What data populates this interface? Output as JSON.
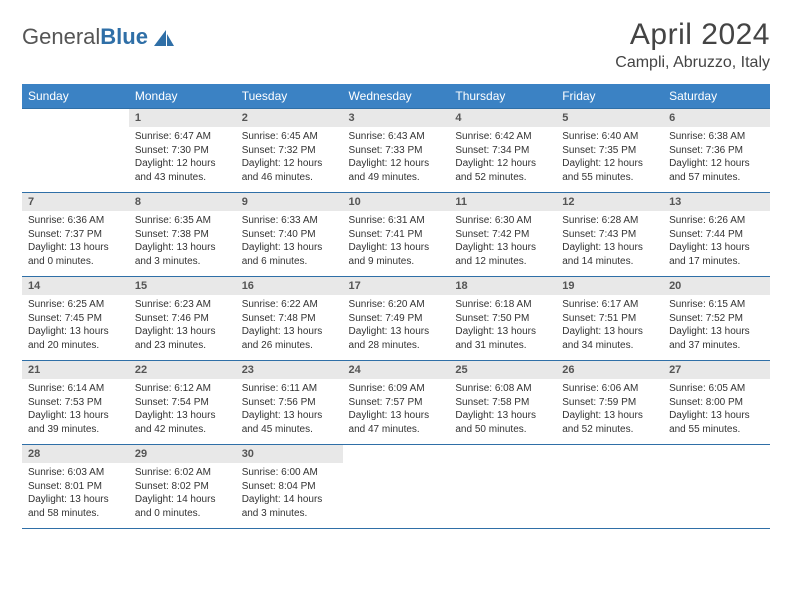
{
  "brand": {
    "part1": "General",
    "part2": "Blue"
  },
  "title": "April 2024",
  "location": "Campli, Abruzzo, Italy",
  "style": {
    "header_bg": "#3b82c4",
    "header_text": "#ffffff",
    "daynum_bg": "#e8e8e8",
    "daynum_text": "#555555",
    "body_text": "#333333",
    "border_color": "#2f6fa7",
    "background": "#ffffff",
    "title_color": "#444444",
    "title_fontsize": 30,
    "location_fontsize": 16,
    "header_fontsize": 12,
    "daynum_fontsize": 11,
    "body_fontsize": 10
  },
  "weekdays": [
    "Sunday",
    "Monday",
    "Tuesday",
    "Wednesday",
    "Thursday",
    "Friday",
    "Saturday"
  ],
  "weeks": [
    [
      null,
      {
        "n": "1",
        "sunrise": "6:47 AM",
        "sunset": "7:30 PM",
        "day_h": 12,
        "day_m": 43
      },
      {
        "n": "2",
        "sunrise": "6:45 AM",
        "sunset": "7:32 PM",
        "day_h": 12,
        "day_m": 46
      },
      {
        "n": "3",
        "sunrise": "6:43 AM",
        "sunset": "7:33 PM",
        "day_h": 12,
        "day_m": 49
      },
      {
        "n": "4",
        "sunrise": "6:42 AM",
        "sunset": "7:34 PM",
        "day_h": 12,
        "day_m": 52
      },
      {
        "n": "5",
        "sunrise": "6:40 AM",
        "sunset": "7:35 PM",
        "day_h": 12,
        "day_m": 55
      },
      {
        "n": "6",
        "sunrise": "6:38 AM",
        "sunset": "7:36 PM",
        "day_h": 12,
        "day_m": 57
      }
    ],
    [
      {
        "n": "7",
        "sunrise": "6:36 AM",
        "sunset": "7:37 PM",
        "day_h": 13,
        "day_m": 0
      },
      {
        "n": "8",
        "sunrise": "6:35 AM",
        "sunset": "7:38 PM",
        "day_h": 13,
        "day_m": 3
      },
      {
        "n": "9",
        "sunrise": "6:33 AM",
        "sunset": "7:40 PM",
        "day_h": 13,
        "day_m": 6
      },
      {
        "n": "10",
        "sunrise": "6:31 AM",
        "sunset": "7:41 PM",
        "day_h": 13,
        "day_m": 9
      },
      {
        "n": "11",
        "sunrise": "6:30 AM",
        "sunset": "7:42 PM",
        "day_h": 13,
        "day_m": 12
      },
      {
        "n": "12",
        "sunrise": "6:28 AM",
        "sunset": "7:43 PM",
        "day_h": 13,
        "day_m": 14
      },
      {
        "n": "13",
        "sunrise": "6:26 AM",
        "sunset": "7:44 PM",
        "day_h": 13,
        "day_m": 17
      }
    ],
    [
      {
        "n": "14",
        "sunrise": "6:25 AM",
        "sunset": "7:45 PM",
        "day_h": 13,
        "day_m": 20
      },
      {
        "n": "15",
        "sunrise": "6:23 AM",
        "sunset": "7:46 PM",
        "day_h": 13,
        "day_m": 23
      },
      {
        "n": "16",
        "sunrise": "6:22 AM",
        "sunset": "7:48 PM",
        "day_h": 13,
        "day_m": 26
      },
      {
        "n": "17",
        "sunrise": "6:20 AM",
        "sunset": "7:49 PM",
        "day_h": 13,
        "day_m": 28
      },
      {
        "n": "18",
        "sunrise": "6:18 AM",
        "sunset": "7:50 PM",
        "day_h": 13,
        "day_m": 31
      },
      {
        "n": "19",
        "sunrise": "6:17 AM",
        "sunset": "7:51 PM",
        "day_h": 13,
        "day_m": 34
      },
      {
        "n": "20",
        "sunrise": "6:15 AM",
        "sunset": "7:52 PM",
        "day_h": 13,
        "day_m": 37
      }
    ],
    [
      {
        "n": "21",
        "sunrise": "6:14 AM",
        "sunset": "7:53 PM",
        "day_h": 13,
        "day_m": 39
      },
      {
        "n": "22",
        "sunrise": "6:12 AM",
        "sunset": "7:54 PM",
        "day_h": 13,
        "day_m": 42
      },
      {
        "n": "23",
        "sunrise": "6:11 AM",
        "sunset": "7:56 PM",
        "day_h": 13,
        "day_m": 45
      },
      {
        "n": "24",
        "sunrise": "6:09 AM",
        "sunset": "7:57 PM",
        "day_h": 13,
        "day_m": 47
      },
      {
        "n": "25",
        "sunrise": "6:08 AM",
        "sunset": "7:58 PM",
        "day_h": 13,
        "day_m": 50
      },
      {
        "n": "26",
        "sunrise": "6:06 AM",
        "sunset": "7:59 PM",
        "day_h": 13,
        "day_m": 52
      },
      {
        "n": "27",
        "sunrise": "6:05 AM",
        "sunset": "8:00 PM",
        "day_h": 13,
        "day_m": 55
      }
    ],
    [
      {
        "n": "28",
        "sunrise": "6:03 AM",
        "sunset": "8:01 PM",
        "day_h": 13,
        "day_m": 58
      },
      {
        "n": "29",
        "sunrise": "6:02 AM",
        "sunset": "8:02 PM",
        "day_h": 14,
        "day_m": 0
      },
      {
        "n": "30",
        "sunrise": "6:00 AM",
        "sunset": "8:04 PM",
        "day_h": 14,
        "day_m": 3
      },
      null,
      null,
      null,
      null
    ]
  ]
}
